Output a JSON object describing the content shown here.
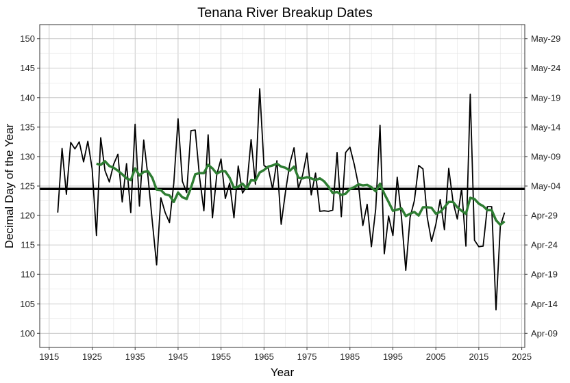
{
  "chart_data": {
    "type": "line",
    "title": "Tenana River Breakup Dates",
    "xlabel": "Year",
    "ylabel": "Decimal Day of the Year",
    "xlim": [
      1912.8,
      2025.7
    ],
    "ylim": [
      97.6,
      152.4
    ],
    "x_ticks": [
      1915,
      1925,
      1935,
      1945,
      1955,
      1965,
      1975,
      1985,
      1995,
      2005,
      2015,
      2025
    ],
    "y_ticks": [
      100,
      105,
      110,
      115,
      120,
      125,
      130,
      135,
      140,
      145,
      150
    ],
    "y2_tick_labels": [
      "Apr-09",
      "Apr-14",
      "Apr-19",
      "Apr-24",
      "Apr-29",
      "May-04",
      "May-09",
      "May-14",
      "May-19",
      "May-24",
      "May-29"
    ],
    "grid": true,
    "mean_line": 124.5,
    "colors": {
      "annual": "#000000",
      "smoothed": "#2e7d32",
      "mean": "#000000"
    },
    "series": [
      {
        "x_start": 1917,
        "values": [
          120.5,
          131.4,
          123.6,
          132.4,
          131.3,
          132.5,
          129.1,
          132.6,
          127.9,
          116.6,
          133.2,
          127.6,
          125.7,
          128.7,
          130.4,
          122.3,
          128.8,
          120.5,
          135.5,
          121.6,
          132.8,
          126.6,
          119.0,
          111.6,
          123.0,
          120.5,
          118.8,
          125.5,
          136.4,
          125.8,
          123.9,
          134.4,
          134.5,
          126.5,
          120.8,
          133.7,
          119.6,
          126.9,
          129.6,
          122.9,
          125.5,
          119.6,
          128.4,
          123.8,
          125.0,
          132.9,
          125.3,
          141.5,
          128.5,
          128.0,
          124.5,
          129.3,
          118.5,
          124.0,
          128.8,
          131.5,
          124.6,
          126.9,
          130.6,
          123.5,
          127.2,
          120.7,
          120.8,
          120.7,
          120.9,
          130.7,
          119.8,
          130.7,
          131.6,
          128.7,
          125.1,
          118.3,
          121.9,
          114.7,
          121.1,
          135.3,
          113.5,
          119.9,
          116.6,
          126.5,
          119.7,
          110.7,
          119.7,
          122.5,
          128.5,
          127.9,
          119.7,
          115.6,
          118.5,
          122.7,
          117.6,
          128.0,
          122.3,
          119.4,
          124.6,
          114.8,
          140.6,
          115.8,
          114.7,
          114.8,
          121.5,
          121.5,
          104.0,
          118.2,
          120.5
        ]
      },
      {
        "x_start": 1926,
        "values": [
          128.8,
          128.6,
          129.2,
          128.4,
          128.1,
          127.6,
          127.0,
          126.3,
          126.0,
          128.0,
          126.8,
          127.4,
          127.5,
          126.4,
          124.4,
          124.3,
          123.6,
          123.4,
          122.3,
          123.9,
          123.1,
          122.8,
          124.7,
          127.0,
          127.2,
          127.2,
          128.6,
          128.0,
          127.1,
          127.5,
          127.5,
          126.4,
          124.7,
          124.9,
          125.4,
          124.6,
          126.0,
          125.9,
          127.3,
          127.7,
          128.3,
          128.5,
          128.8,
          128.3,
          128.1,
          127.6,
          128.3,
          126.4,
          126.3,
          126.5,
          126.3,
          126.0,
          126.3,
          125.8,
          124.9,
          123.8,
          124.0,
          123.5,
          123.7,
          124.5,
          124.8,
          125.3,
          125.1,
          125.2,
          124.8,
          124.1,
          125.4,
          123.7,
          122.3,
          120.8,
          121.0,
          121.2,
          119.9,
          120.3,
          120.6,
          120.0,
          121.4,
          121.4,
          121.3,
          120.3,
          120.6,
          121.4,
          122.3,
          122.3,
          121.4,
          120.8,
          120.3,
          123.0,
          122.8,
          122.0,
          121.6,
          120.9,
          120.9,
          119.2,
          118.4,
          119.0
        ]
      }
    ]
  }
}
